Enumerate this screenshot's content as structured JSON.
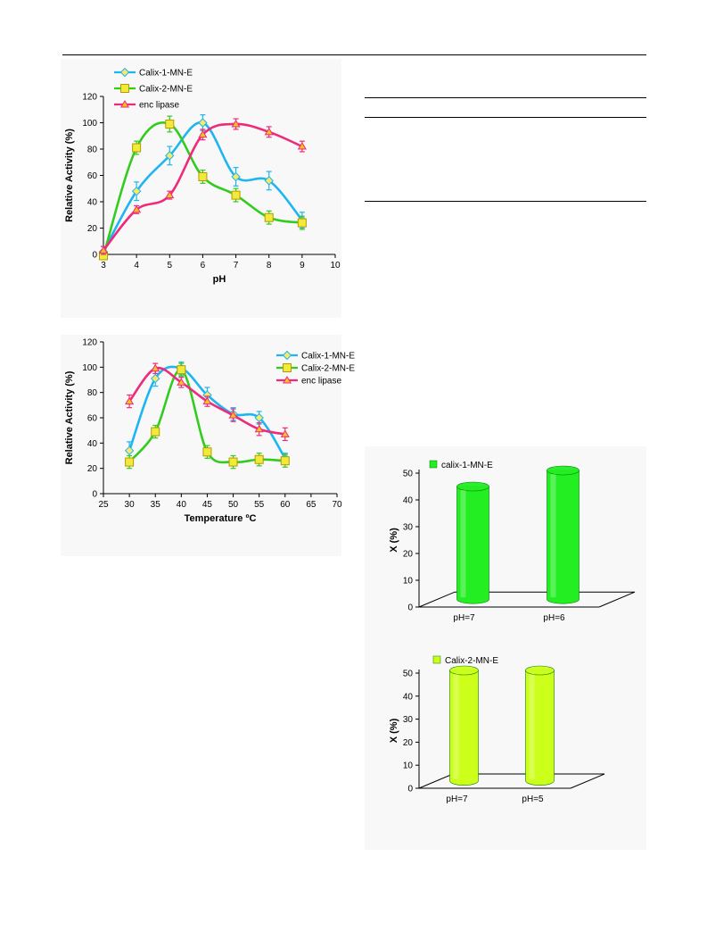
{
  "chart_data": [
    {
      "id": "ph-chart",
      "type": "line",
      "xlabel": "pH",
      "ylabel": "Relative Activity (%)",
      "xlim": [
        3,
        10
      ],
      "ylim": [
        0,
        120
      ],
      "x_ticks": [
        3,
        4,
        5,
        6,
        7,
        8,
        9,
        10
      ],
      "y_ticks": [
        0,
        20,
        40,
        60,
        80,
        100,
        120
      ],
      "legend_position": "top-left",
      "series": [
        {
          "name": "Calix-1-MN-E",
          "color": "#1fb5f0",
          "marker": "diamond",
          "marker_color": "#f5e96a",
          "x": [
            3,
            4,
            5,
            6,
            7,
            8,
            9
          ],
          "y": [
            2,
            48,
            75,
            100,
            59,
            56,
            26
          ],
          "err": [
            4,
            7,
            7,
            6,
            7,
            7,
            6
          ]
        },
        {
          "name": "Calix-2-MN-E",
          "color": "#33cc1e",
          "marker": "square",
          "marker_color": "#f2ea3a",
          "x": [
            3,
            4,
            5,
            6,
            7,
            8,
            9
          ],
          "y": [
            -1,
            81,
            99,
            59,
            45,
            28,
            24
          ],
          "err": [
            3,
            5,
            6,
            5,
            5,
            5,
            5
          ]
        },
        {
          "name": "enc lipase",
          "color": "#ee2a7b",
          "marker": "triangle",
          "marker_color": "#f5c21b",
          "x": [
            3,
            4,
            5,
            6,
            7,
            8,
            9
          ],
          "y": [
            3,
            34,
            45,
            91,
            99,
            93,
            82
          ],
          "err": [
            3,
            3,
            3,
            4,
            4,
            4,
            4
          ]
        }
      ]
    },
    {
      "id": "temp-chart",
      "type": "line",
      "xlabel": "Temperature ºC",
      "ylabel": "Relative Activity (%)",
      "xlim": [
        25,
        70
      ],
      "ylim": [
        0,
        120
      ],
      "x_ticks": [
        25,
        30,
        35,
        40,
        45,
        50,
        55,
        60,
        65,
        70
      ],
      "y_ticks": [
        0,
        20,
        40,
        60,
        80,
        100,
        120
      ],
      "legend_position": "top-right",
      "series": [
        {
          "name": "Calix-1-MN-E",
          "color": "#1fb5f0",
          "marker": "diamond",
          "marker_color": "#f5e96a",
          "x": [
            30,
            35,
            40,
            45,
            50,
            55,
            60
          ],
          "y": [
            34,
            91,
            99,
            78,
            63,
            60,
            28
          ],
          "err": [
            7,
            6,
            5,
            6,
            5,
            5,
            4
          ]
        },
        {
          "name": "Calix-2-MN-E",
          "color": "#33cc1e",
          "marker": "square",
          "marker_color": "#f2ea3a",
          "x": [
            30,
            35,
            40,
            45,
            50,
            55,
            60
          ],
          "y": [
            25,
            49,
            98,
            33,
            25,
            27,
            26
          ],
          "err": [
            5,
            5,
            5,
            5,
            5,
            5,
            5
          ]
        },
        {
          "name": "enc lipase",
          "color": "#ee2a7b",
          "marker": "triangle",
          "marker_color": "#f5c21b",
          "x": [
            30,
            35,
            40,
            45,
            50,
            55,
            60
          ],
          "y": [
            73,
            99,
            88,
            73,
            62,
            51,
            47
          ],
          "err": [
            5,
            4,
            4,
            4,
            5,
            5,
            5
          ]
        }
      ]
    },
    {
      "id": "bar-chart-1",
      "type": "bar",
      "ylabel": "X (%)",
      "ylim": [
        0,
        50
      ],
      "y_ticks": [
        0,
        10,
        20,
        30,
        40,
        50
      ],
      "categories": [
        "pH=7",
        "pH=6"
      ],
      "series": [
        {
          "name": "calix-1-MN-E",
          "values": [
            44,
            50
          ],
          "color": "#22ee22"
        }
      ],
      "legend_position": "top-left"
    },
    {
      "id": "bar-chart-2",
      "type": "bar",
      "ylabel": "X (%)",
      "ylim": [
        0,
        50
      ],
      "y_ticks": [
        0,
        10,
        20,
        30,
        40,
        50
      ],
      "categories": [
        "pH=7",
        "pH=5"
      ],
      "series": [
        {
          "name": "Calix-2-MN-E",
          "values": [
            50,
            50
          ],
          "color": "#ccff1a"
        }
      ],
      "legend_position": "top-left"
    }
  ]
}
